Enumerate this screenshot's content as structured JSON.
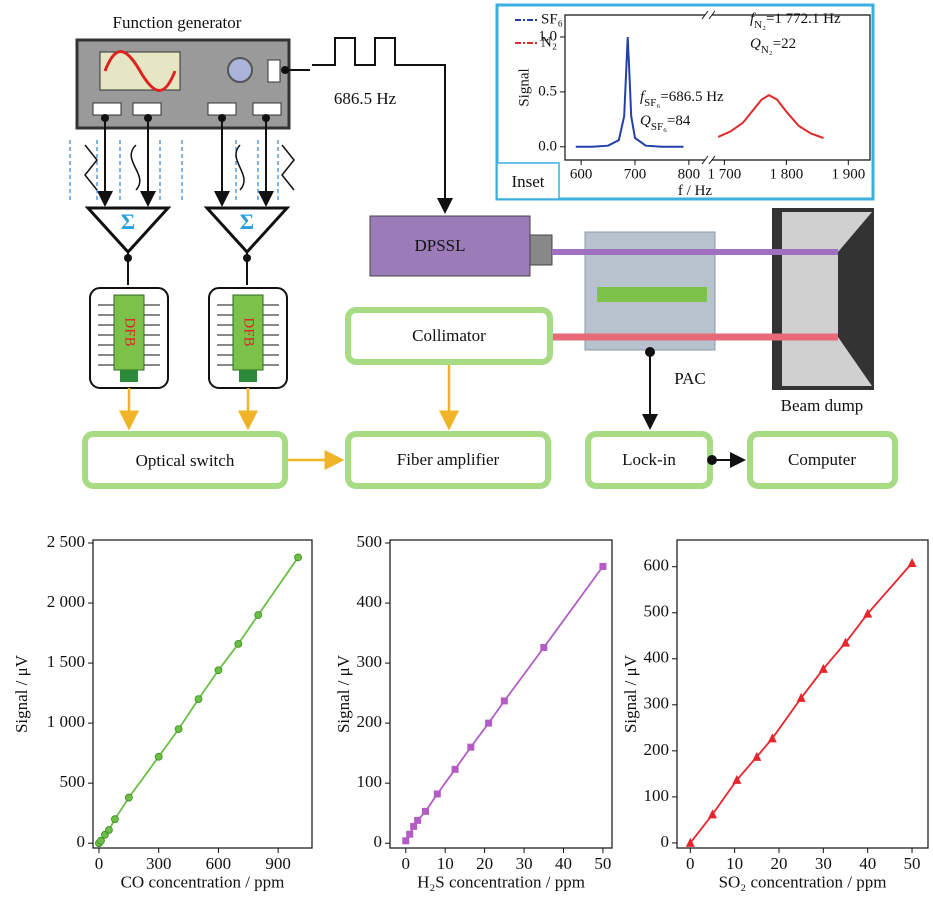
{
  "diagram": {
    "function_generator": "Function generator",
    "frequency": "686.5 Hz",
    "summers": [
      "Σ",
      "Σ"
    ],
    "lasers": [
      "DFB",
      "DFB"
    ],
    "dpssl": "DPSSL",
    "collimator": "Collimator",
    "pac": "PAC",
    "beam_dump": "Beam dump",
    "optical_switch": "Optical switch",
    "fiber_amplifier": "Fiber amplifier",
    "lock_in": "Lock-in",
    "computer": "Computer",
    "inset_label": "Inset"
  },
  "chart_data": [
    {
      "type": "line",
      "ylabel": "Signal",
      "xlabel": "f / Hz",
      "axis_break": true,
      "xlim": [
        [
          570,
          830
        ],
        [
          1680,
          1935
        ]
      ],
      "xticks": [
        [
          600,
          700,
          800
        ],
        [
          {
            "value": 1700,
            "label": "1 700"
          },
          {
            "value": 1800,
            "label": "1 800"
          },
          {
            "value": 1900,
            "label": "1 900"
          }
        ]
      ],
      "ylim": [
        -0.12,
        1.2
      ],
      "yticks": [
        {
          "value": 0,
          "label": "0.0"
        },
        {
          "value": 0.5,
          "label": "0.5"
        },
        {
          "value": 1,
          "label": "1.0"
        }
      ],
      "series": [
        {
          "name": "SF₆",
          "color": "#2340a8",
          "x": [
            590,
            620,
            650,
            670,
            680,
            684,
            686.5,
            689,
            693,
            700,
            720,
            750,
            790
          ],
          "values": [
            0.0,
            0.0,
            0.01,
            0.06,
            0.28,
            0.73,
            1.0,
            0.73,
            0.28,
            0.08,
            0.01,
            0.0,
            0.0
          ]
        },
        {
          "name": "N₂",
          "color": "#e02a2a",
          "x": [
            1690,
            1710,
            1730,
            1750,
            1760,
            1772,
            1785,
            1800,
            1820,
            1840,
            1860
          ],
          "values": [
            0.09,
            0.14,
            0.22,
            0.36,
            0.43,
            0.47,
            0.43,
            0.32,
            0.19,
            0.12,
            0.08
          ]
        }
      ],
      "annotations": [
        {
          "text": "f",
          "sub": "N₂",
          "tail": "=1 772.1 Hz"
        },
        {
          "text": "Q",
          "sub": "N₂",
          "tail": "=22"
        },
        {
          "text": "f",
          "sub": "SF₆",
          "tail": "=686.5 Hz"
        },
        {
          "text": "Q",
          "sub": "SF₆",
          "tail": "=84"
        }
      ]
    },
    {
      "type": "line",
      "marker": "circle",
      "xlabel": "CO concentration / ppm",
      "ylabel": "Signal / μV",
      "xlim": [
        -30,
        1070
      ],
      "xticks": [
        0,
        300,
        600,
        900
      ],
      "ylim": [
        -40,
        2525
      ],
      "yticks": [
        0,
        500,
        {
          "value": 1000,
          "label": "1 000"
        },
        {
          "value": 1500,
          "label": "1 500"
        },
        {
          "value": 2000,
          "label": "2 000"
        },
        {
          "value": 2500,
          "label": "2 500"
        }
      ],
      "series": [
        {
          "color": "#6bbf45",
          "x": [
            0,
            10,
            30,
            50,
            80,
            150,
            300,
            400,
            500,
            600,
            700,
            800,
            1000
          ],
          "values": [
            0,
            20,
            70,
            110,
            200,
            380,
            720,
            950,
            1200,
            1440,
            1660,
            1900,
            2380
          ]
        }
      ]
    },
    {
      "type": "line",
      "marker": "square",
      "xlabel": "H₂S concentration / ppm",
      "ylabel": "Signal / μV",
      "xlim": [
        -4,
        52.3
      ],
      "xticks": [
        0,
        10,
        20,
        30,
        40,
        50
      ],
      "ylim": [
        -8,
        505
      ],
      "yticks": [
        0,
        100,
        200,
        300,
        400,
        500
      ],
      "series": [
        {
          "color": "#b25cc4",
          "x": [
            0,
            1,
            2,
            3,
            5,
            8,
            12.5,
            16.5,
            21,
            25,
            35,
            50
          ],
          "values": [
            4,
            15,
            28,
            38,
            53,
            82,
            123,
            160,
            200,
            237,
            326,
            461
          ]
        }
      ]
    },
    {
      "type": "line",
      "marker": "triangle",
      "xlabel": "SO₂ concentration / ppm",
      "ylabel": "Signal / μV",
      "xlim": [
        -3,
        53.6
      ],
      "xticks": [
        0,
        10,
        20,
        30,
        40,
        50
      ],
      "ylim": [
        -11,
        658
      ],
      "yticks": [
        0,
        100,
        200,
        300,
        400,
        500,
        600
      ],
      "series": [
        {
          "color": "#e8242c",
          "x": [
            0,
            5,
            10.5,
            15,
            18.5,
            25,
            30,
            35,
            40,
            50
          ],
          "values": [
            0,
            62,
            137,
            187,
            227,
            315,
            378,
            435,
            498,
            608
          ]
        }
      ]
    }
  ]
}
